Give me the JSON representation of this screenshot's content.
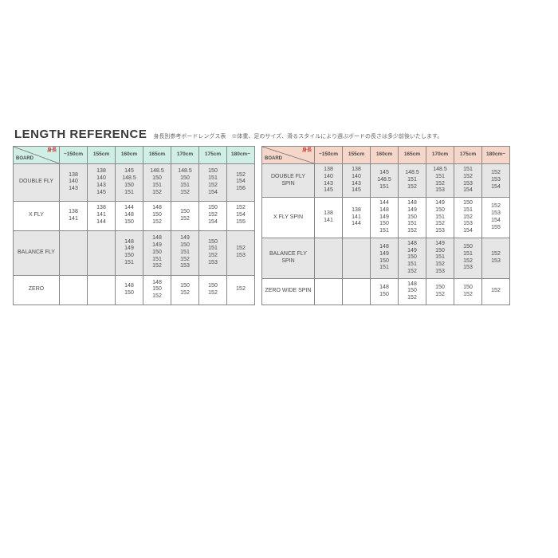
{
  "title": "LENGTH REFERENCE",
  "subtitle": "身長別参考ボードレングス表　※体重、足のサイズ、滑るスタイルにより選ぶボードの長さは多少前後いたします。",
  "header_corner": {
    "board": "BOARD",
    "height": "身長"
  },
  "columns": [
    "~150cm",
    "155cm",
    "160cm",
    "165cm",
    "170cm",
    "175cm",
    "180cm~"
  ],
  "left_table": {
    "header_bg": "#cfeee6",
    "alt_row_bg": "#e6e6e6",
    "boards": [
      {
        "name": "DOUBLE FLY",
        "cells": [
          "138\n140\n143",
          "138\n140\n143\n145",
          "145\n148.5\n150\n151",
          "148.5\n150\n151\n152",
          "148.5\n150\n151\n152",
          "150\n151\n152\n154",
          "152\n154\n156"
        ]
      },
      {
        "name": "X FLY",
        "cells": [
          "138\n141",
          "138\n141\n144",
          "144\n148\n150",
          "148\n150\n152",
          "150\n152",
          "150\n152\n154",
          "152\n154\n155"
        ]
      },
      {
        "name": "BALANCE FLY",
        "cells": [
          "",
          "",
          "148\n149\n150\n151",
          "148\n149\n150\n151\n152",
          "149\n150\n151\n152\n153",
          "150\n151\n152\n153",
          "152\n153"
        ]
      },
      {
        "name": "ZERO",
        "cells": [
          "",
          "",
          "148\n150",
          "148\n150\n152",
          "150\n152",
          "150\n152",
          "152"
        ]
      }
    ]
  },
  "right_table": {
    "header_bg": "#f6d6c8",
    "alt_row_bg": "#e6e6e6",
    "boards": [
      {
        "name": "DOUBLE FLY SPIN",
        "cells": [
          "138\n140\n143\n145",
          "138\n140\n143\n145",
          "145\n148.5\n151",
          "148.5\n151\n152",
          "148.5\n151\n152\n153",
          "151\n152\n153\n154",
          "152\n153\n154"
        ]
      },
      {
        "name": "X FLY SPIN",
        "cells": [
          "138\n141",
          "138\n141\n144",
          "144\n148\n149\n150\n151",
          "148\n149\n150\n151\n152",
          "149\n150\n151\n152\n153",
          "150\n151\n152\n153\n154",
          "152\n153\n154\n155"
        ]
      },
      {
        "name": "BALANCE  FLY SPIN",
        "cells": [
          "",
          "",
          "148\n149\n150\n151",
          "148\n149\n150\n151\n152",
          "149\n150\n151\n152\n153",
          "150\n151\n152\n153",
          "152\n153"
        ]
      },
      {
        "name": "ZERO WIDE SPIN",
        "cells": [
          "",
          "",
          "148\n150",
          "148\n150\n152",
          "150\n152",
          "150\n152",
          "152"
        ]
      }
    ]
  },
  "colors": {
    "page_bg": "#ffffff",
    "border": "#888888",
    "text": "#4a4a4a",
    "height_label": "#c94444"
  }
}
